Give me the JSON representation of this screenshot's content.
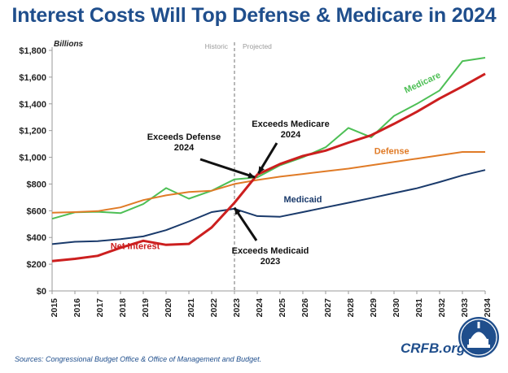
{
  "title": "Interest Costs Will Top Defense & Medicare in 2024",
  "sources": "Sources: Congressional Budget Office & Office of Management and Budget.",
  "brand": "CRFB.org",
  "brand_logo_icon": "capitol-dome-seal-icon",
  "colors": {
    "title": "#1f4e8c",
    "net_interest": "#cc1f1f",
    "defense": "#e07b27",
    "medicare": "#4dbf55",
    "medicaid": "#1a3a6b"
  },
  "chart_data": {
    "type": "line",
    "ylabel": "Billions",
    "ylim": [
      0,
      1800
    ],
    "ytick_values": [
      0,
      200,
      400,
      600,
      800,
      1000,
      1200,
      1400,
      1600,
      1800
    ],
    "ytick_labels": [
      "$0",
      "$200",
      "$400",
      "$600",
      "$800",
      "$1,000",
      "$1,200",
      "$1,400",
      "$1,600",
      "$1,800"
    ],
    "x": [
      "2015",
      "2016",
      "2017",
      "2018",
      "2019",
      "2020",
      "2021",
      "2022",
      "2023",
      "2024",
      "2025",
      "2026",
      "2027",
      "2028",
      "2029",
      "2030",
      "2031",
      "2032",
      "2033",
      "2034"
    ],
    "grid": false,
    "divider_year": "2023",
    "region_labels": {
      "left": "Historic",
      "right": "Projected"
    },
    "series": [
      {
        "name": "Medicare",
        "color": "#4dbf55",
        "values": [
          540,
          588,
          592,
          582,
          650,
          770,
          690,
          750,
          835,
          850,
          940,
          1000,
          1075,
          1220,
          1150,
          1310,
          1400,
          1500,
          1720,
          1745
        ]
      },
      {
        "name": "Defense",
        "color": "#e07b27",
        "values": [
          585,
          590,
          597,
          625,
          680,
          715,
          740,
          750,
          800,
          830,
          855,
          875,
          895,
          915,
          940,
          965,
          990,
          1015,
          1040,
          1040
        ]
      },
      {
        "name": "Medicaid",
        "color": "#1a3a6b",
        "values": [
          350,
          368,
          373,
          388,
          408,
          455,
          520,
          590,
          615,
          560,
          555,
          590,
          625,
          660,
          695,
          732,
          768,
          815,
          865,
          905
        ]
      },
      {
        "name": "Net Interest",
        "color": "#cc1f1f",
        "values": [
          223,
          240,
          263,
          323,
          375,
          345,
          352,
          475,
          660,
          870,
          950,
          1010,
          1050,
          1110,
          1165,
          1250,
          1340,
          1440,
          1530,
          1625
        ]
      }
    ],
    "annotations": [
      {
        "line1": "Exceeds Defense",
        "line2": "2024"
      },
      {
        "line1": "Exceeds Medicare",
        "line2": "2024"
      },
      {
        "line1": "Exceeds Medicaid",
        "line2": "2023"
      }
    ]
  }
}
